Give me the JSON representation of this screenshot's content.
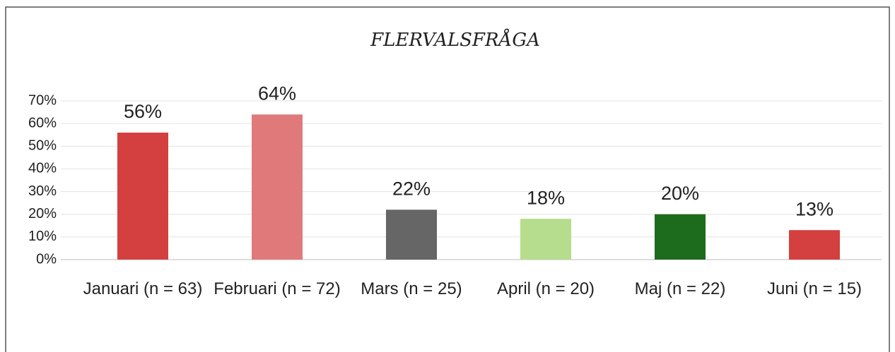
{
  "chart_data": {
    "type": "bar",
    "title": "FLERVALSFRÅGA",
    "categories": [
      "Januari (n = 63)",
      "Februari (n = 72)",
      "Mars (n = 25)",
      "April (n = 20)",
      "Maj (n = 22)",
      "Juni (n = 15)"
    ],
    "values": [
      56,
      64,
      22,
      18,
      20,
      13
    ],
    "value_labels": [
      "56%",
      "64%",
      "22%",
      "18%",
      "20%",
      "13%"
    ],
    "colors": [
      "#d43f3f",
      "#e07a7a",
      "#666666",
      "#b5dd8d",
      "#1d6b1d",
      "#d43f3f"
    ],
    "ylim": [
      0,
      70
    ],
    "yticks": [
      {
        "value": 0,
        "label": "0%"
      },
      {
        "value": 10,
        "label": "10%"
      },
      {
        "value": 20,
        "label": "20%"
      },
      {
        "value": 30,
        "label": "30%"
      },
      {
        "value": 40,
        "label": "40%"
      },
      {
        "value": 50,
        "label": "50%"
      },
      {
        "value": 60,
        "label": "60%"
      },
      {
        "value": 70,
        "label": "70%"
      }
    ],
    "grid": true
  }
}
